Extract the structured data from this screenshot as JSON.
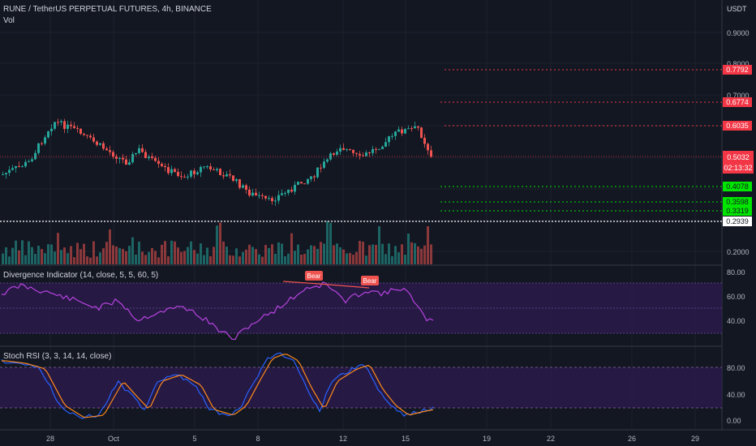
{
  "header": {
    "symbol_line": "RUNE / TetherUS PERPETUAL FUTURES, 4h, BINANCE",
    "vol_label": "Vol",
    "currency": "USDT"
  },
  "price_axis": {
    "ticks": [
      "0.9000",
      "0.8000",
      "0.7000",
      "0.2000"
    ]
  },
  "levels": [
    {
      "value": "0.7792",
      "color": "#f23645",
      "kind": "resistance"
    },
    {
      "value": "0.6774",
      "color": "#f23645",
      "kind": "resistance"
    },
    {
      "value": "0.6035",
      "color": "#f23645",
      "kind": "resistance"
    },
    {
      "value": "0.4078",
      "color": "#00e600",
      "kind": "support"
    },
    {
      "value": "0.3598",
      "color": "#00e600",
      "kind": "support"
    },
    {
      "value": "0.3319",
      "color": "#00e600",
      "kind": "support"
    },
    {
      "value": "0.2939",
      "color": "#ffffff",
      "kind": "base"
    }
  ],
  "last_price": {
    "value": "0.5032",
    "countdown": "02:13:32",
    "color": "#f23645"
  },
  "divergence_panel": {
    "title": "Divergence Indicator (14, close, 5, 5, 60, 5)",
    "ticks": [
      "80.00",
      "60.00",
      "40.00"
    ],
    "labels": [
      "Bear",
      "Bear"
    ]
  },
  "stoch_panel": {
    "title": "Stoch RSI (3, 3, 14, 14, close)",
    "ticks": [
      "80.00",
      "40.00",
      "0.00"
    ]
  },
  "time_axis": {
    "ticks": [
      "28",
      "Oct",
      "5",
      "8",
      "12",
      "15",
      "19",
      "22",
      "26",
      "29"
    ]
  },
  "colors": {
    "bull": "#26a69a",
    "bear": "#ef5350",
    "rsi_line": "#b844e0",
    "stoch_k": "#2962ff",
    "stoch_d": "#ff8a1c",
    "band": "#2a1a4a"
  }
}
